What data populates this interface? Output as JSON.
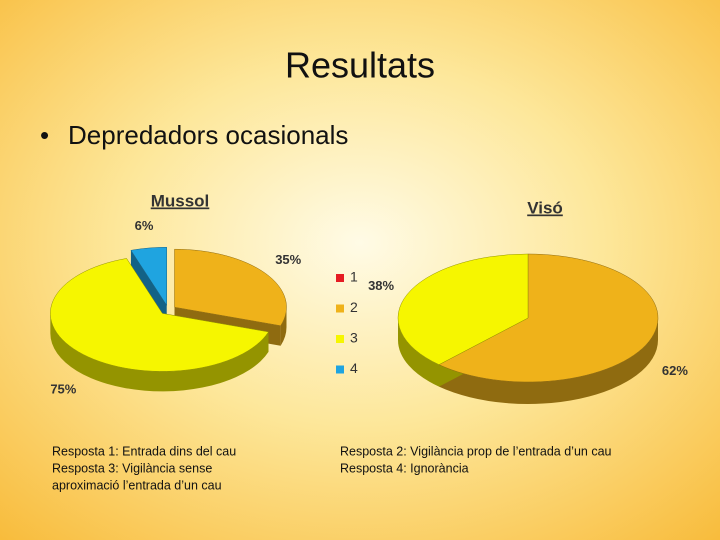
{
  "slide": {
    "title": "Resultats",
    "bullet": "Depredadors ocasionals"
  },
  "chart_data": [
    {
      "type": "pie",
      "title": "Mussol",
      "categories": [
        "1",
        "2",
        "3",
        "4"
      ],
      "colors": [
        "#e51c23",
        "#efb21a",
        "#f6f600",
        "#1fa4e0"
      ],
      "values": [
        0,
        35,
        75,
        6
      ],
      "value_labels": [
        null,
        "35%",
        "75%",
        "6%"
      ],
      "exploded": true
    },
    {
      "type": "pie",
      "title": "Visó",
      "values": [
        0,
        62,
        38,
        0
      ],
      "value_labels": [
        null,
        "62%",
        "38%",
        null
      ],
      "exploded": false
    }
  ],
  "notes": {
    "left": [
      "Resposta 1: Entrada dins del cau",
      "Resposta 3: Vigilància sense",
      "aproximació l’entrada d’un cau"
    ],
    "right": [
      "Resposta 2: Vigilància prop de l’entrada d’un cau",
      "Resposta 4: Ignorància"
    ]
  }
}
